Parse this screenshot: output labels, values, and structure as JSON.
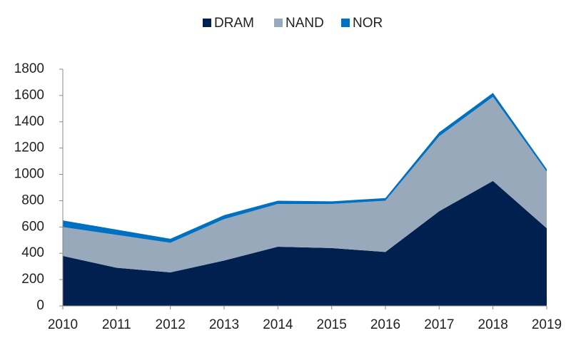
{
  "chart_data": {
    "type": "stacked-area",
    "categories": [
      "2010",
      "2011",
      "2012",
      "2013",
      "2014",
      "2015",
      "2016",
      "2017",
      "2018",
      "2019"
    ],
    "series": [
      {
        "name": "DRAM",
        "color": "#002050",
        "values": [
          380,
          290,
          255,
          345,
          450,
          440,
          410,
          720,
          950,
          590
        ]
      },
      {
        "name": "NAND",
        "color": "#97a9ba",
        "values": [
          220,
          250,
          225,
          315,
          325,
          335,
          390,
          570,
          640,
          430
        ]
      },
      {
        "name": "NOR",
        "color": "#0070c0",
        "values": [
          50,
          40,
          30,
          30,
          25,
          20,
          20,
          30,
          30,
          20
        ]
      }
    ],
    "ylim": [
      0,
      1800
    ],
    "yticks": [
      0,
      200,
      400,
      600,
      800,
      1000,
      1200,
      1400,
      1600,
      1800
    ],
    "legend": "top"
  }
}
